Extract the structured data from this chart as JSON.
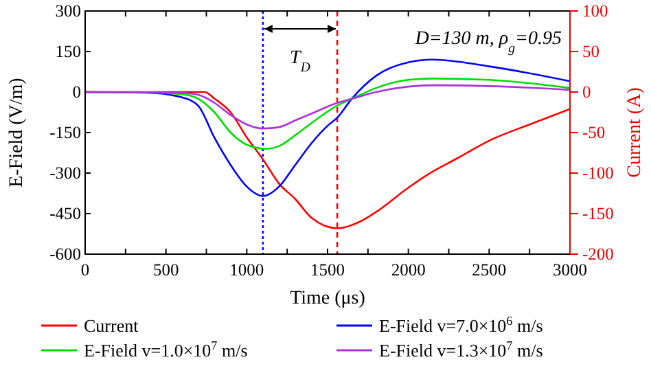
{
  "chart_data": {
    "type": "line",
    "xlabel": "Time (μs)",
    "ylabel": "E-Field (V/m)",
    "y2label": "Current (A)",
    "xlim": [
      0,
      3000
    ],
    "xticks": [
      0,
      {
        "value": 250,
        "label": null
      },
      500,
      {
        "value": 750,
        "label": null
      },
      1000,
      {
        "value": 1250,
        "label": null
      },
      1500,
      {
        "value": 1750,
        "label": null
      },
      2000,
      {
        "value": 2250,
        "label": null
      },
      2500,
      {
        "value": 2750,
        "label": null
      },
      3000
    ],
    "ylim": [
      -600,
      300
    ],
    "yticks": [
      -600,
      -450,
      -300,
      -150,
      0,
      150,
      300
    ],
    "y2lim": [
      -200,
      100
    ],
    "y2ticks": [
      -200,
      -150,
      -100,
      -50,
      0,
      50,
      100
    ],
    "legend": "bottom",
    "grid": false,
    "marker": "none",
    "line_style": "solid",
    "series": [
      {
        "name": "Current",
        "color": "#ff0000",
        "axis": "y2",
        "x": [
          0,
          500,
          740,
          800,
          900,
          1000,
          1100,
          1200,
          1300,
          1400,
          1560,
          1700,
          1800,
          2000,
          2135,
          2300,
          2500,
          2750,
          3000
        ],
        "values": [
          0,
          0,
          0,
          -8,
          -25,
          -56,
          -83,
          -113,
          -132,
          -155,
          -168,
          -160,
          -148,
          -118,
          -100,
          -82,
          -60,
          -40,
          -21
        ]
      },
      {
        "name": "E-Field v=7.0×10$^{6}$ m/s",
        "color": "#0000ff",
        "x": [
          0,
          400,
          600,
          700,
          800,
          900,
          1000,
          1100,
          1200,
          1300,
          1400,
          1500,
          1560,
          1650,
          1800,
          2000,
          2150,
          2500,
          3000
        ],
        "values": [
          0,
          -3,
          -20,
          -51,
          -169,
          -270,
          -350,
          -385,
          -350,
          -270,
          -190,
          -125,
          -95,
          -25,
          60,
          110,
          120,
          95,
          40
        ]
      },
      {
        "name": "E-Field v=1.0×10$^{7}$ m/s",
        "color": "#00dd00",
        "x": [
          0,
          400,
          600,
          700,
          800,
          900,
          1000,
          1120,
          1200,
          1300,
          1400,
          1560,
          1650,
          1800,
          2000,
          2150,
          2500,
          3000
        ],
        "values": [
          0,
          -2,
          -8,
          -25,
          -75,
          -150,
          -195,
          -210,
          -200,
          -160,
          -115,
          -50,
          -25,
          15,
          45,
          50,
          45,
          15
        ]
      },
      {
        "name": "E-Field v=1.3×10$^{7}$ m/s",
        "color": "#aa33dd",
        "x": [
          0,
          400,
          600,
          700,
          800,
          900,
          1000,
          1100,
          1200,
          1300,
          1400,
          1560,
          1650,
          1800,
          2000,
          2150,
          2500,
          3000
        ],
        "values": [
          0,
          -1,
          -3,
          -10,
          -40,
          -85,
          -120,
          -135,
          -130,
          -105,
          -80,
          -40,
          -25,
          0,
          20,
          25,
          22,
          8
        ]
      }
    ],
    "ref_lines": [
      {
        "axis": "x",
        "value": 1100,
        "color": "#0000ff",
        "line_style": "dotted"
      },
      {
        "axis": "x",
        "value": 1560,
        "color": "#ff0000",
        "line_style": "dashed"
      }
    ],
    "annotations": [
      "T$_{D}$",
      "D=130 m, ρ$_{g}$=0.95"
    ]
  }
}
